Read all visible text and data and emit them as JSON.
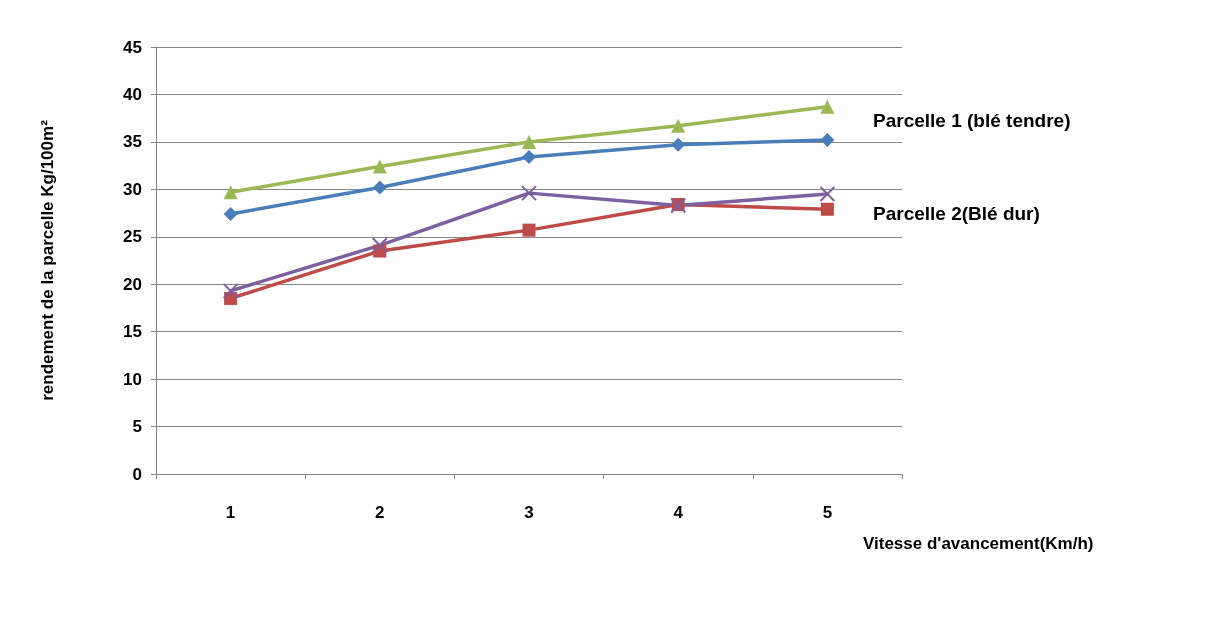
{
  "chart_data": {
    "type": "line",
    "xlabel": "Vitesse d'avancement(Km/h)",
    "ylabel": "rendement de la parcelle Kg/100m²",
    "categories": [
      "1",
      "2",
      "3",
      "4",
      "5"
    ],
    "series": [
      {
        "color": "#4a7ebb",
        "marker": "diamond",
        "values": [
          27.4,
          30.2,
          33.4,
          34.7,
          35.2
        ]
      },
      {
        "color": "#be4b48",
        "marker": "square",
        "values": [
          18.5,
          23.5,
          25.7,
          28.4,
          27.9
        ]
      },
      {
        "color": "#98b954",
        "marker": "triangle",
        "values": [
          29.7,
          32.4,
          35.0,
          36.7,
          38.7
        ]
      },
      {
        "color": "#7d60a0",
        "marker": "cross",
        "values": [
          19.3,
          24.1,
          29.6,
          28.3,
          29.5
        ]
      }
    ],
    "ylim": [
      0,
      45
    ],
    "yticks": [
      0,
      5,
      10,
      15,
      20,
      25,
      30,
      35,
      40,
      45
    ],
    "grid": "y",
    "line_style": "solid",
    "annotations": [
      "Parcelle 1 (blé tendre)",
      "Parcelle 2(Blé dur)"
    ]
  }
}
